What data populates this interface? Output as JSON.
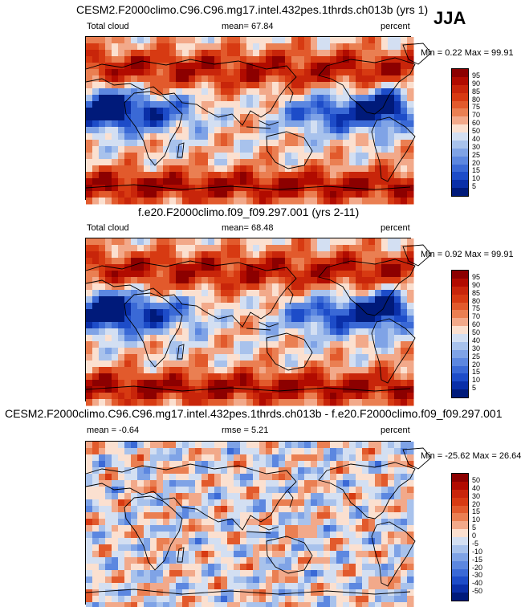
{
  "season": "JJA",
  "panels": [
    {
      "title": "CESM2.F2000climo.C96.C96.mg17.intel.432pes.1thrds.ch013b (yrs 1)",
      "left_label": "Total cloud",
      "center_label": "mean=  67.84",
      "right_label": "percent",
      "minmax": "Min =   0.22 Max =  99.91",
      "levels": [
        "95",
        "90",
        "85",
        "80",
        "75",
        "70",
        "60",
        "50",
        "40",
        "30",
        "25",
        "20",
        "15",
        "10",
        "5"
      ],
      "colors": [
        "#8c0000",
        "#b10b00",
        "#c8250a",
        "#d73a12",
        "#e25a2c",
        "#ea7f52",
        "#f2a98a",
        "#fbe0d0",
        "#d3dff2",
        "#a8c2ec",
        "#7fa3e6",
        "#5c87e0",
        "#3a69d6",
        "#1d4cc8",
        "#0a2fa8",
        "#001a7a"
      ],
      "map_type": "cloud"
    },
    {
      "title": "f.e20.F2000climo.f09_f09.297.001 (yrs 2-11)",
      "left_label": "Total cloud",
      "center_label": "mean=  68.48",
      "right_label": "percent",
      "minmax": "Min =   0.92 Max =  99.91",
      "levels": [
        "95",
        "90",
        "85",
        "80",
        "75",
        "70",
        "60",
        "50",
        "40",
        "30",
        "25",
        "20",
        "15",
        "10",
        "5"
      ],
      "colors": [
        "#8c0000",
        "#b10b00",
        "#c8250a",
        "#d73a12",
        "#e25a2c",
        "#ea7f52",
        "#f2a98a",
        "#fbe0d0",
        "#d3dff2",
        "#a8c2ec",
        "#7fa3e6",
        "#5c87e0",
        "#3a69d6",
        "#1d4cc8",
        "#0a2fa8",
        "#001a7a"
      ],
      "map_type": "cloud"
    },
    {
      "title": "CESM2.F2000climo.C96.C96.mg17.intel.432pes.1thrds.ch013b - f.e20.F2000climo.f09_f09.297.001",
      "left_label": "mean =  -0.64",
      "center_label": "rmse =   5.21",
      "right_label": "percent",
      "minmax": "Min = -25.62 Max =  26.64",
      "levels": [
        "50",
        "40",
        "30",
        "20",
        "15",
        "10",
        "5",
        "0",
        "-5",
        "-10",
        "-15",
        "-20",
        "-30",
        "-40",
        "-50"
      ],
      "colors": [
        "#8c0000",
        "#b10b00",
        "#c8250a",
        "#d73a12",
        "#e25a2c",
        "#ea7f52",
        "#f2a98a",
        "#fbe0d0",
        "#d3dff2",
        "#a8c2ec",
        "#7fa3e6",
        "#5c87e0",
        "#3a69d6",
        "#1d4cc8",
        "#0a2fa8",
        "#001a7a"
      ],
      "map_type": "diff"
    }
  ]
}
